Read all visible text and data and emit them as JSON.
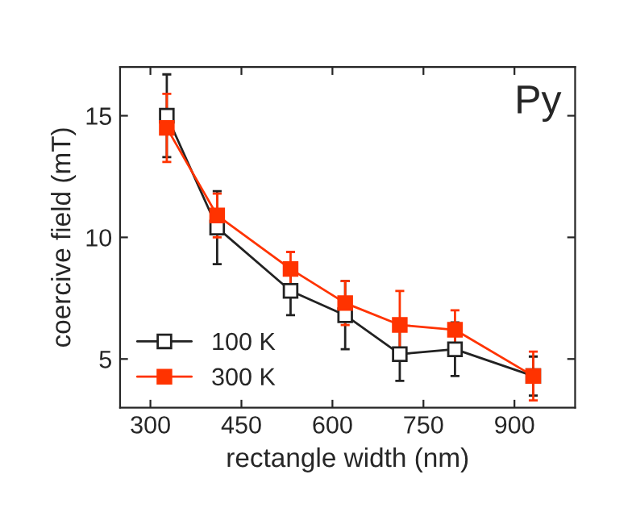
{
  "chart_data": {
    "type": "line",
    "xlabel": "rectangle width (nm)",
    "ylabel": "coercive field (mT)",
    "annotations": [
      "Py"
    ],
    "x": [
      327,
      410,
      531,
      621,
      711,
      802,
      931
    ],
    "series": [
      {
        "name": "100 K",
        "color": "#222222",
        "marker": "square",
        "values": [
          15.0,
          10.4,
          7.8,
          6.8,
          5.2,
          5.4,
          4.3
        ],
        "errors": [
          1.7,
          1.5,
          1.0,
          1.4,
          1.1,
          1.1,
          0.8
        ]
      },
      {
        "name": "300 K",
        "color": "#ff3300",
        "marker": "square",
        "values": [
          14.5,
          10.9,
          8.7,
          7.3,
          6.4,
          6.2,
          4.3
        ],
        "errors": [
          1.4,
          0.9,
          0.7,
          0.9,
          1.4,
          0.8,
          1.0
        ]
      }
    ],
    "xlim": [
      250,
      1000
    ],
    "xticks": [
      300,
      450,
      600,
      750,
      900
    ],
    "ylim": [
      3,
      17
    ],
    "yticks": [
      5,
      10,
      15
    ],
    "grid": false,
    "legend": "bottom left"
  }
}
